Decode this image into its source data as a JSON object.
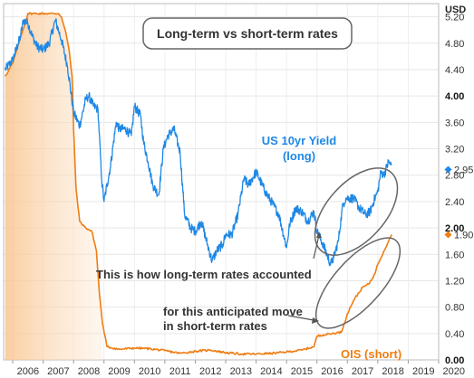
{
  "chart_data": {
    "type": "line",
    "title": "Long-term vs short-term rates",
    "ylabel": "USD",
    "ylim": [
      0,
      5.4
    ],
    "xlim": [
      2005.7,
      2020.0
    ],
    "yticks": [
      "5.20",
      "4.80",
      "4.40",
      "4.00",
      "3.60",
      "3.20",
      "2.80",
      "2.40",
      "2.00",
      "1.60",
      "1.20",
      "0.80",
      "0.40",
      "0.00"
    ],
    "bold_yticks": [
      "4.00",
      "2.00",
      "0.00"
    ],
    "xticks": [
      "2006",
      "2007",
      "2008",
      "2009",
      "2010",
      "2011",
      "2012",
      "2013",
      "2014",
      "2015",
      "2016",
      "2017",
      "2018",
      "2019",
      "2020"
    ],
    "grid": true,
    "colors": {
      "blue": "#1e88e5",
      "orange": "#ef7d12",
      "annotation": "#555555"
    },
    "series": [
      {
        "name": "US 10yr Yield (long)",
        "label_lines": [
          "US 10yr Yield",
          "(long)"
        ],
        "last_value": 2.95,
        "x": [
          2005.75,
          2006.0,
          2006.25,
          2006.35,
          2006.5,
          2006.65,
          2006.8,
          2007.0,
          2007.2,
          2007.4,
          2007.5,
          2007.6,
          2007.8,
          2008.0,
          2008.2,
          2008.4,
          2008.5,
          2008.65,
          2008.8,
          2008.92,
          2009.0,
          2009.2,
          2009.4,
          2009.5,
          2009.7,
          2009.9,
          2010.0,
          2010.2,
          2010.3,
          2010.45,
          2010.6,
          2010.8,
          2010.95,
          2011.1,
          2011.3,
          2011.5,
          2011.65,
          2011.85,
          2012.0,
          2012.2,
          2012.4,
          2012.55,
          2012.7,
          2012.9,
          2013.0,
          2013.2,
          2013.4,
          2013.6,
          2013.75,
          2014.0,
          2014.3,
          2014.5,
          2014.75,
          2015.0,
          2015.1,
          2015.3,
          2015.5,
          2015.7,
          2015.9,
          2016.0,
          2016.2,
          2016.45,
          2016.55,
          2016.7,
          2016.85,
          2016.95,
          2017.0,
          2017.2,
          2017.4,
          2017.6,
          2017.75,
          2017.9,
          2018.0,
          2018.1,
          2018.2,
          2018.35,
          2018.45
        ],
        "y": [
          4.4,
          4.55,
          4.9,
          5.15,
          5.1,
          4.9,
          4.75,
          4.7,
          4.8,
          5.15,
          5.0,
          4.85,
          4.45,
          3.75,
          3.55,
          3.95,
          4.0,
          3.85,
          3.8,
          2.75,
          2.4,
          2.9,
          3.6,
          3.5,
          3.5,
          3.4,
          3.85,
          3.7,
          3.3,
          3.0,
          2.65,
          2.5,
          3.2,
          3.4,
          3.5,
          3.15,
          2.2,
          2.0,
          1.95,
          2.1,
          1.75,
          1.5,
          1.65,
          1.75,
          1.9,
          1.9,
          2.2,
          2.75,
          2.65,
          2.85,
          2.55,
          2.4,
          2.2,
          1.7,
          2.05,
          2.3,
          2.25,
          2.1,
          2.25,
          1.95,
          1.75,
          1.45,
          1.55,
          1.8,
          2.35,
          2.45,
          2.45,
          2.45,
          2.3,
          2.2,
          2.25,
          2.45,
          2.55,
          2.85,
          2.8,
          3.0,
          2.95
        ]
      },
      {
        "name": "OIS (short)",
        "label": "OIS (short)",
        "last_value": 1.9,
        "x": [
          2005.75,
          2006.0,
          2006.3,
          2006.5,
          2006.8,
          2007.2,
          2007.5,
          2007.6,
          2007.75,
          2007.85,
          2007.95,
          2008.0,
          2008.08,
          2008.2,
          2008.4,
          2008.6,
          2008.75,
          2008.85,
          2008.95,
          2009.1,
          2009.5,
          2010.0,
          2010.5,
          2011.0,
          2011.5,
          2012.0,
          2012.5,
          2013.0,
          2013.5,
          2014.0,
          2014.5,
          2015.0,
          2015.5,
          2015.9,
          2016.0,
          2016.2,
          2016.5,
          2016.8,
          2016.9,
          2017.0,
          2017.2,
          2017.5,
          2017.7,
          2017.9,
          2018.0,
          2018.2,
          2018.45
        ],
        "y": [
          4.3,
          4.5,
          4.95,
          5.25,
          5.25,
          5.25,
          5.25,
          5.2,
          4.95,
          4.7,
          4.3,
          3.5,
          2.6,
          2.1,
          2.0,
          1.95,
          1.65,
          1.0,
          0.55,
          0.2,
          0.16,
          0.18,
          0.17,
          0.14,
          0.1,
          0.13,
          0.15,
          0.11,
          0.09,
          0.09,
          0.1,
          0.12,
          0.15,
          0.2,
          0.36,
          0.38,
          0.4,
          0.42,
          0.55,
          0.7,
          0.9,
          1.1,
          1.15,
          1.3,
          1.45,
          1.65,
          1.9
        ]
      }
    ],
    "annotations": [
      "This is how long-term rates accounted",
      "for this anticipated move",
      "in short-term rates"
    ],
    "last_markers": [
      "2.95",
      "1.90"
    ]
  }
}
